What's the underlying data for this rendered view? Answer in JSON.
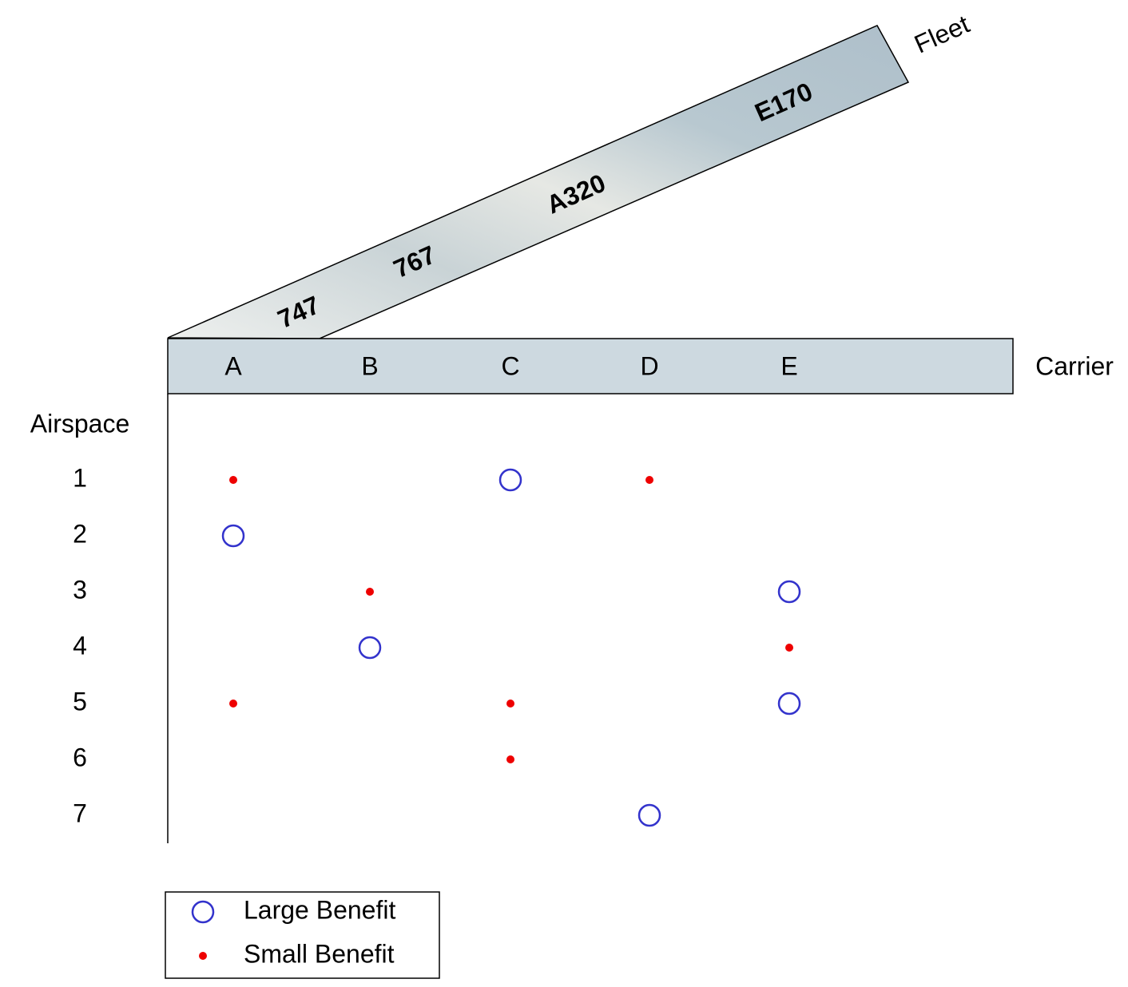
{
  "fleet": {
    "title": "Fleet",
    "types": [
      "747",
      "767",
      "A320",
      "E170"
    ]
  },
  "carrier": {
    "title": "Carrier",
    "names": [
      "A",
      "B",
      "C",
      "D",
      "E"
    ]
  },
  "airspace": {
    "title": "Airspace",
    "rows": [
      "1",
      "2",
      "3",
      "4",
      "5",
      "6",
      "7"
    ]
  },
  "benefits": [
    [
      "small",
      null,
      "large",
      "small",
      null
    ],
    [
      "large",
      null,
      null,
      null,
      null
    ],
    [
      null,
      "small",
      null,
      null,
      "large"
    ],
    [
      null,
      "large",
      null,
      null,
      "small"
    ],
    [
      "small",
      null,
      "small",
      null,
      "large"
    ],
    [
      null,
      null,
      "small",
      null,
      null
    ],
    [
      null,
      null,
      null,
      "large",
      null
    ]
  ],
  "legend": {
    "items": [
      {
        "kind": "large",
        "label": "Large Benefit"
      },
      {
        "kind": "small",
        "label": "Small Benefit"
      }
    ]
  }
}
